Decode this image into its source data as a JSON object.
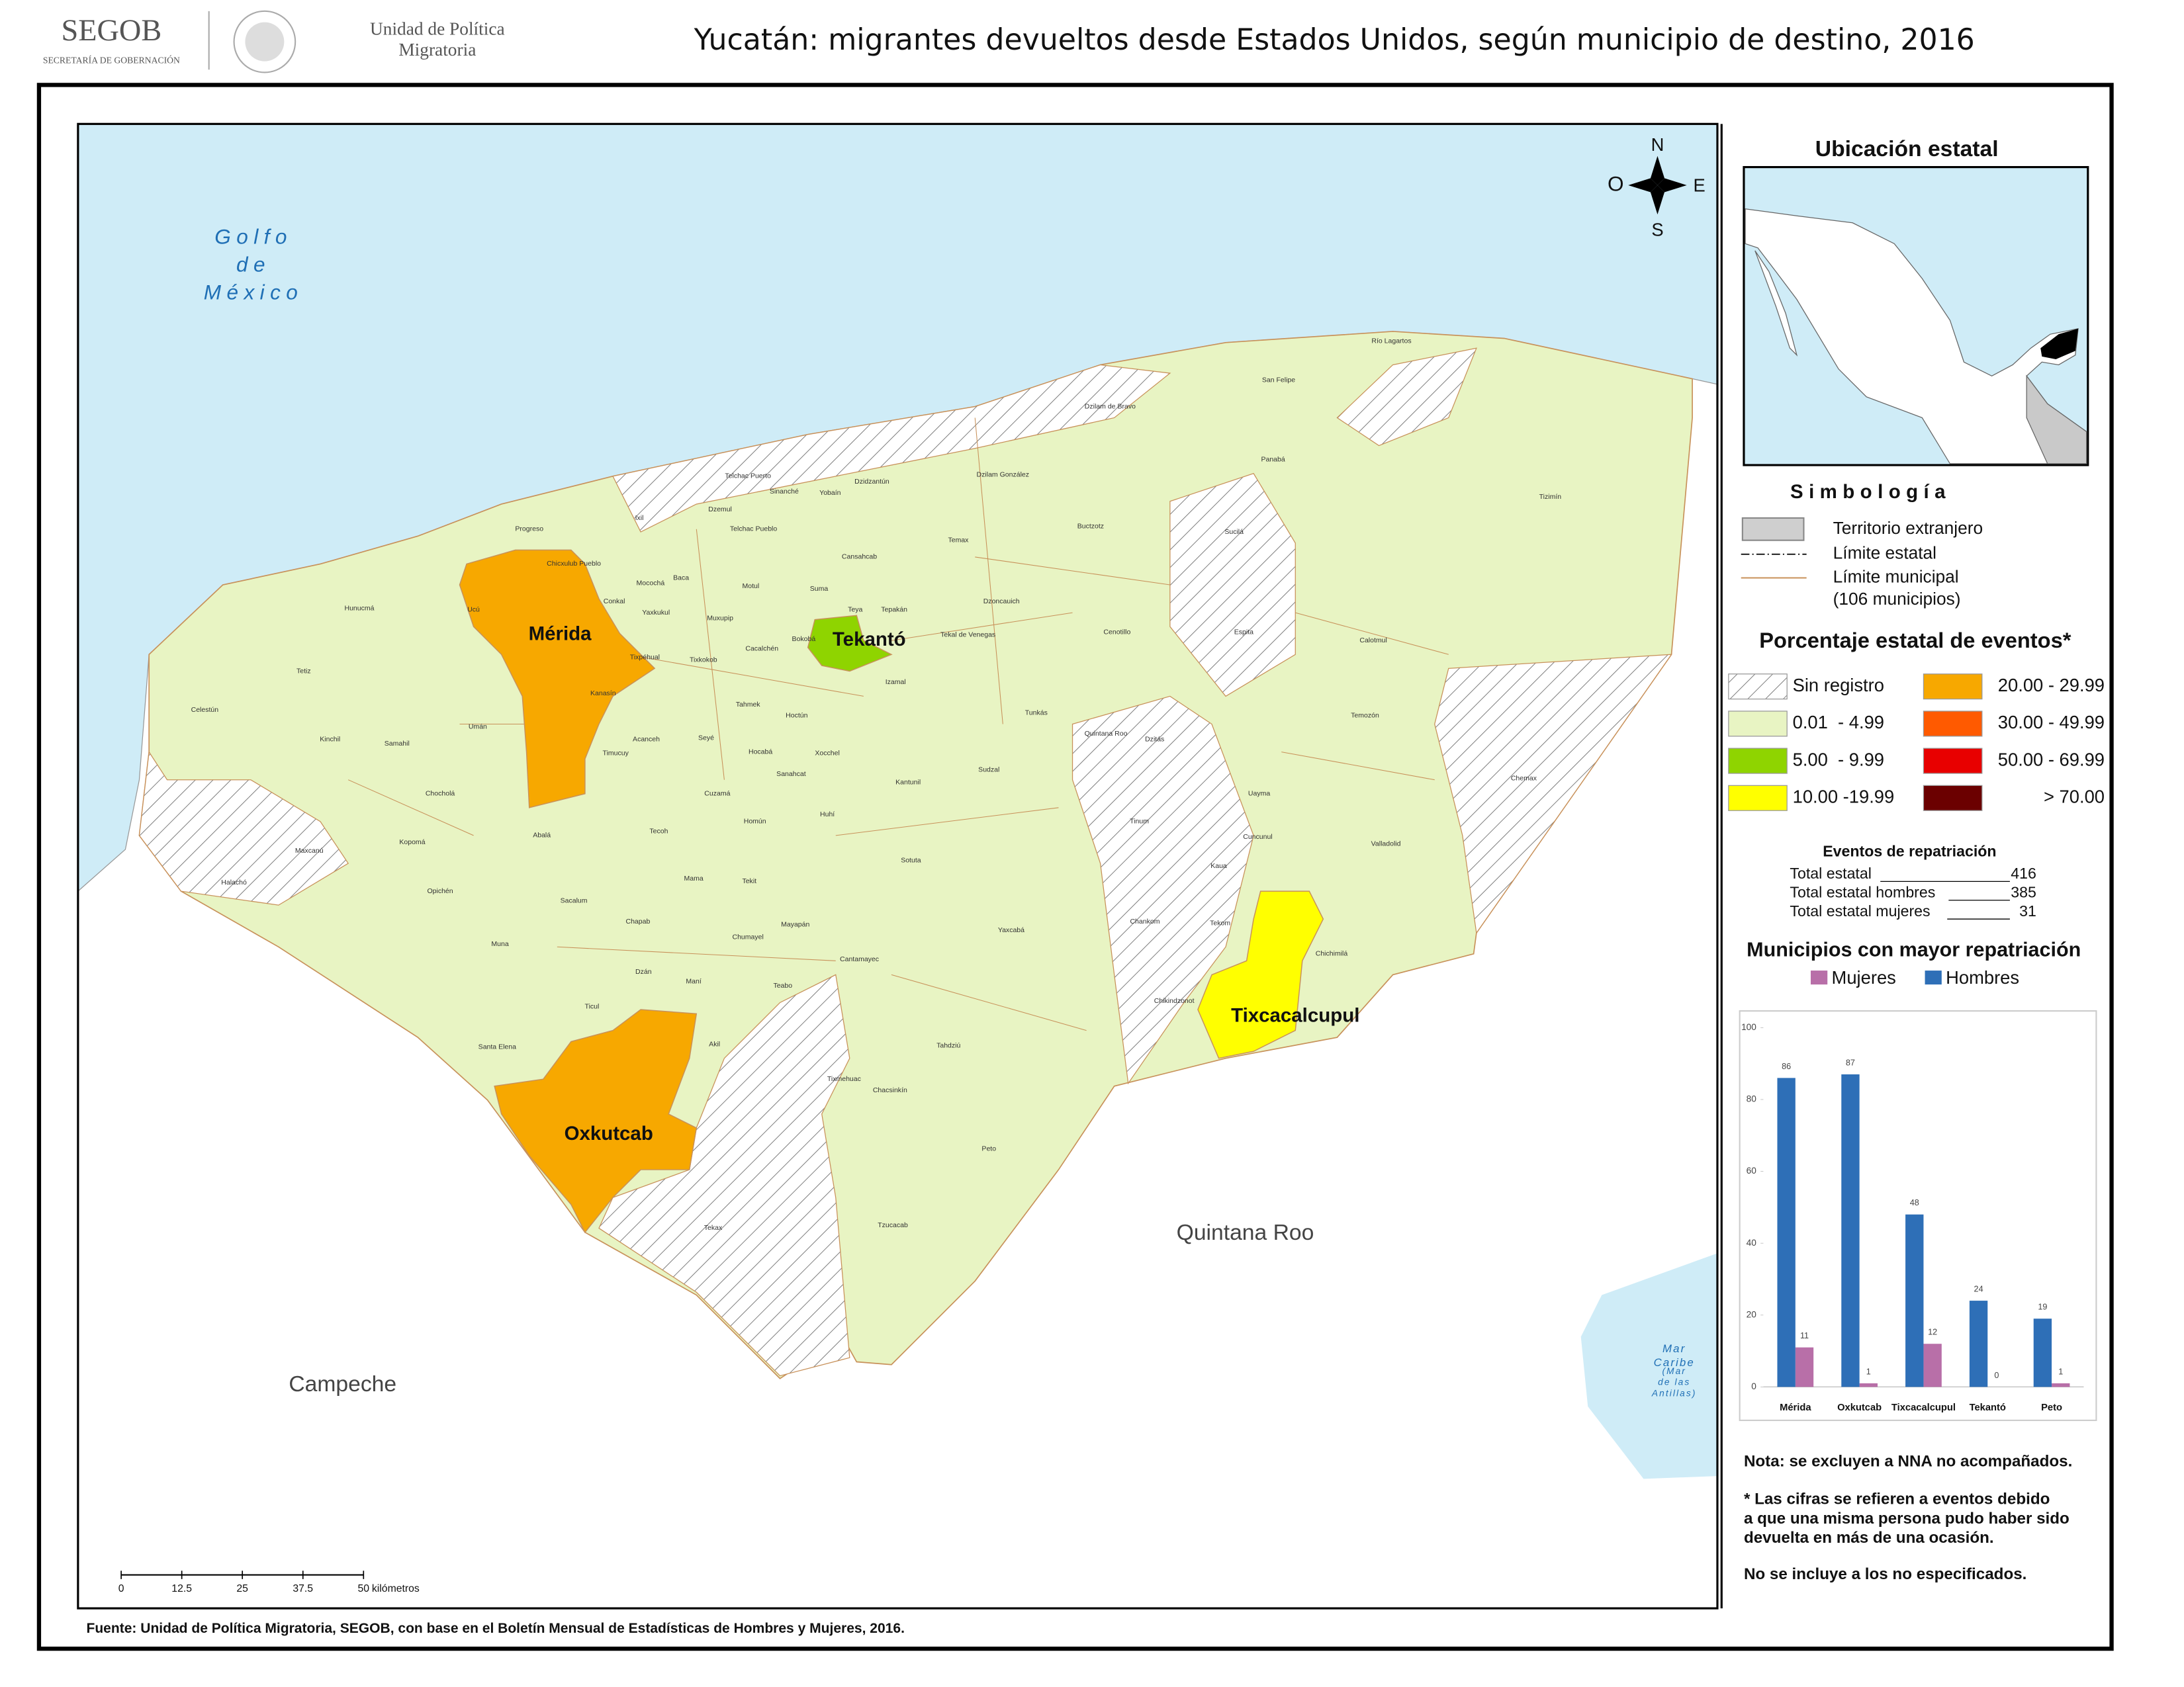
{
  "header": {
    "logo": "SEGOB",
    "logo_subtitle": "SECRETARÍA DE GOBERNACIÓN",
    "unit_line1": "Unidad de Política",
    "unit_line2": "Migratoria",
    "title": "Yucatán: migrantes devueltos desde Estados Unidos, según municipio de destino, 2016"
  },
  "map": {
    "sea_label": [
      "Golfo",
      "de",
      "México"
    ],
    "caribbean_label": [
      "Mar",
      "Caribe",
      "(Mar",
      "de las",
      "Antillas)"
    ],
    "neighbors": [
      "Quintana Roo",
      "Campeche"
    ],
    "compass": {
      "n": "N",
      "s": "S",
      "e": "E",
      "w": "O"
    },
    "highlighted": [
      {
        "name": "Mérida",
        "color": "#f7a800"
      },
      {
        "name": "Tekantó",
        "color": "#8fd400"
      },
      {
        "name": "Tixcacalcupul",
        "color": "#ffff00"
      },
      {
        "name": "Oxkutcab",
        "color": "#f7a800"
      }
    ],
    "municipalities": [
      "Progreso",
      "Hunucmá",
      "Tetiz",
      "Celestún",
      "Kinchil",
      "Samahil",
      "Umán",
      "Chocholá",
      "Kopomá",
      "Abalá",
      "Maxcanú",
      "Halachó",
      "Opichén",
      "Muna",
      "Sacalum",
      "Chapab",
      "Mama",
      "Tecoh",
      "Tekit",
      "Mayapán",
      "Chumayel",
      "Dzán",
      "Maní",
      "Teabo",
      "Cantamayec",
      "Yaxcabá",
      "Sotuta",
      "Homún",
      "Cuzamá",
      "Huhí",
      "Kantunil",
      "Sudzal",
      "Tunkás",
      "Izamal",
      "Hoctún",
      "Tahmek",
      "Xocchel",
      "Hocabá",
      "Sanahcat",
      "Seyé",
      "Timucuy",
      "Acanceh",
      "Kanasín",
      "Ucú",
      "Conkal",
      "Chicxulub Pueblo",
      "Mocochá",
      "Yaxkukul",
      "Tixpéhual",
      "Tixkokob",
      "Muxupip",
      "Cacalchén",
      "Bokobá",
      "Motul",
      "Baca",
      "Ixil",
      "Telchac Puerto",
      "Sinanché",
      "Yobaín",
      "Dzemul",
      "Telchac Pueblo",
      "Dzidzantún",
      "Dzilam González",
      "Dzilam de Bravo",
      "Temax",
      "Cansahcab",
      "Suma",
      "Teya",
      "Tepakán",
      "Dzoncauich",
      "Tekal de Venegas",
      "Cenotillo",
      "Buctzotz",
      "Sucilá",
      "Panabá",
      "San Felipe",
      "Río Lagartos",
      "Tizimín",
      "Espita",
      "Calotmul",
      "Temozón",
      "Chemax",
      "Valladolid",
      "Uayma",
      "Cuncunul",
      "Kaua",
      "Tekom",
      "Chankom",
      "Chichimilá",
      "Tinum",
      "Dzitás",
      "Quintana Roo",
      "Chikindzonot",
      "Tahdziú",
      "Chacsinkín",
      "Tixmehuac",
      "Peto",
      "Tzucacab",
      "Tekax",
      "Akil",
      "Ticul",
      "Santa Elena"
    ],
    "scale": {
      "ticks": [
        0,
        12.5,
        25,
        37.5,
        50
      ],
      "unit": "kilómetros"
    }
  },
  "legend": {
    "inset_title": "Ubicación estatal",
    "symbology_title": "Simbología",
    "symbols": [
      "Territorio extranjero",
      "Límite estatal",
      "Límite municipal",
      "(106 municipios)"
    ],
    "classes_title": "Porcentaje estatal de eventos*",
    "classes": [
      {
        "label": "Sin registro",
        "color": "#ffffff",
        "pattern": "hatch"
      },
      {
        "label": "0.01  - 4.99",
        "color": "#e8f4c3"
      },
      {
        "label": "5.00  - 9.99",
        "color": "#8fd400"
      },
      {
        "label": "10.00 -19.99",
        "color": "#ffff00"
      },
      {
        "label": "20.00 - 29.99",
        "color": "#f7a800"
      },
      {
        "label": "30.00 - 49.99",
        "color": "#ff5a00"
      },
      {
        "label": "50.00 - 69.99",
        "color": "#e80000"
      },
      {
        "label": "> 70.00",
        "color": "#6b0000"
      }
    ]
  },
  "totals": {
    "title": "Eventos de repatriación",
    "rows": [
      {
        "label": "Total estatal",
        "value": 416
      },
      {
        "label": "Total estatal hombres",
        "value": 385
      },
      {
        "label": "Total estatal mujeres",
        "value": 31
      }
    ]
  },
  "chart_data": {
    "type": "bar",
    "title": "Municipios con mayor repatriación",
    "categories": [
      "Mérida",
      "Oxkutcab",
      "Tixcacalcupul",
      "Tekantó",
      "Peto"
    ],
    "series": [
      {
        "name": "Mujeres",
        "color": "#b86fa8",
        "values": [
          11,
          1,
          12,
          0,
          1
        ]
      },
      {
        "name": "Hombres",
        "color": "#2e6fb7",
        "values": [
          86,
          87,
          48,
          24,
          19
        ]
      }
    ],
    "ylim": [
      0,
      100
    ],
    "yticks": [
      0,
      20,
      40,
      60,
      80,
      100
    ],
    "grid": false
  },
  "notes": [
    "Nota: se excluyen a NNA no acompañados.",
    "* Las cifras se refieren a eventos debido",
    "a que una misma persona pudo haber sido",
    "devuelta en más de una ocasión.",
    "No se incluye a los no especificados."
  ],
  "footer": "Fuente: Unidad de Política Migratoria, SEGOB, con base en el Boletín Mensual de Estadísticas de Hombres y Mujeres, 2016."
}
